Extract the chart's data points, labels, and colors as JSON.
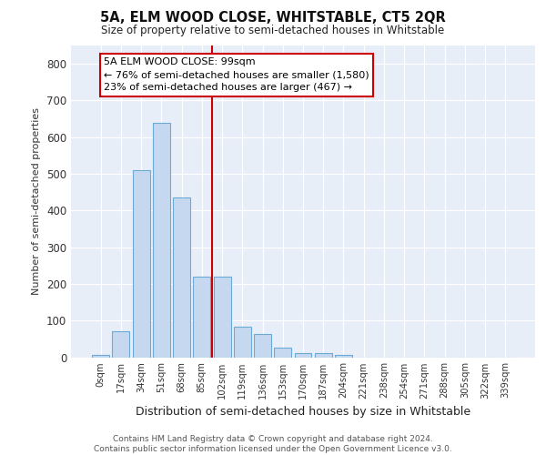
{
  "title": "5A, ELM WOOD CLOSE, WHITSTABLE, CT5 2QR",
  "subtitle": "Size of property relative to semi-detached houses in Whitstable",
  "xlabel": "Distribution of semi-detached houses by size in Whitstable",
  "ylabel": "Number of semi-detached properties",
  "categories": [
    "0sqm",
    "17sqm",
    "34sqm",
    "51sqm",
    "68sqm",
    "85sqm",
    "102sqm",
    "119sqm",
    "136sqm",
    "153sqm",
    "170sqm",
    "187sqm",
    "204sqm",
    "221sqm",
    "238sqm",
    "254sqm",
    "271sqm",
    "288sqm",
    "305sqm",
    "322sqm",
    "339sqm"
  ],
  "bar_heights": [
    5,
    70,
    510,
    640,
    435,
    220,
    220,
    82,
    63,
    27,
    10,
    10,
    5,
    0,
    0,
    0,
    0,
    0,
    0,
    0,
    0
  ],
  "bar_color": "#c5d8f0",
  "bar_edge_color": "#6aaad4",
  "vline_color": "#cc0000",
  "annotation_text": "5A ELM WOOD CLOSE: 99sqm\n← 76% of semi-detached houses are smaller (1,580)\n23% of semi-detached houses are larger (467) →",
  "annotation_box_color": "#ffffff",
  "annotation_box_edge": "#cc0000",
  "ylim": [
    0,
    850
  ],
  "yticks": [
    0,
    100,
    200,
    300,
    400,
    500,
    600,
    700,
    800
  ],
  "background_color": "#e8eef8",
  "grid_color": "#ffffff",
  "footer_line1": "Contains HM Land Registry data © Crown copyright and database right 2024.",
  "footer_line2": "Contains public sector information licensed under the Open Government Licence v3.0."
}
